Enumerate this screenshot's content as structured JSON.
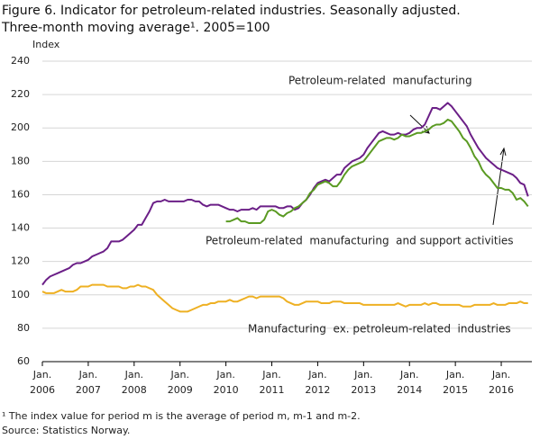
{
  "chart_data": {
    "type": "line",
    "title": [
      "Figure 6.  Indicator for petroleum-related industries. Seasonally adjusted.",
      "Three-month moving average¹. 2005=100"
    ],
    "y_label": "Index",
    "footnote": "¹ The index value for period m is the average of period m, m-1 and m-2.",
    "source": "Source: Statistics Norway.",
    "x": [
      "2006-01",
      "2006-02",
      "2006-03",
      "2006-04",
      "2006-05",
      "2006-06",
      "2006-07",
      "2006-08",
      "2006-09",
      "2006-10",
      "2006-11",
      "2006-12",
      "2007-01",
      "2007-02",
      "2007-03",
      "2007-04",
      "2007-05",
      "2007-06",
      "2007-07",
      "2007-08",
      "2007-09",
      "2007-10",
      "2007-11",
      "2007-12",
      "2008-01",
      "2008-02",
      "2008-03",
      "2008-04",
      "2008-05",
      "2008-06",
      "2008-07",
      "2008-08",
      "2008-09",
      "2008-10",
      "2008-11",
      "2008-12",
      "2009-01",
      "2009-02",
      "2009-03",
      "2009-04",
      "2009-05",
      "2009-06",
      "2009-07",
      "2009-08",
      "2009-09",
      "2009-10",
      "2009-11",
      "2009-12",
      "2010-01",
      "2010-02",
      "2010-03",
      "2010-04",
      "2010-05",
      "2010-06",
      "2010-07",
      "2010-08",
      "2010-09",
      "2010-10",
      "2010-11",
      "2010-12",
      "2011-01",
      "2011-02",
      "2011-03",
      "2011-04",
      "2011-05",
      "2011-06",
      "2011-07",
      "2011-08",
      "2011-09",
      "2011-10",
      "2011-11",
      "2011-12",
      "2012-01",
      "2012-02",
      "2012-03",
      "2012-04",
      "2012-05",
      "2012-06",
      "2012-07",
      "2012-08",
      "2012-09",
      "2012-10",
      "2012-11",
      "2012-12",
      "2013-01",
      "2013-02",
      "2013-03",
      "2013-04",
      "2013-05",
      "2013-06",
      "2013-07",
      "2013-08",
      "2013-09",
      "2013-10",
      "2013-11",
      "2013-12",
      "2014-01",
      "2014-02",
      "2014-03",
      "2014-04",
      "2014-05",
      "2014-06",
      "2014-07",
      "2014-08",
      "2014-09",
      "2014-10",
      "2014-11",
      "2014-12",
      "2015-01",
      "2015-02",
      "2015-03",
      "2015-04",
      "2015-05",
      "2015-06",
      "2015-07",
      "2015-08",
      "2015-09",
      "2015-10",
      "2015-11",
      "2015-12",
      "2016-01",
      "2016-02",
      "2016-03",
      "2016-04",
      "2016-05",
      "2016-06",
      "2016-07",
      "2016-08"
    ],
    "series": [
      {
        "name": "Petroleum-related  manufacturing",
        "color": "#6b1f87",
        "values": [
          106,
          109,
          111,
          112,
          113,
          114,
          115,
          116,
          118,
          119,
          119,
          120,
          121,
          123,
          124,
          125,
          126,
          128,
          132,
          132,
          132,
          133,
          135,
          137,
          139,
          142,
          142,
          146,
          150,
          155,
          156,
          156,
          157,
          156,
          156,
          156,
          156,
          156,
          157,
          157,
          156,
          156,
          154,
          153,
          154,
          154,
          154,
          153,
          152,
          151,
          151,
          150,
          151,
          151,
          151,
          152,
          151,
          153,
          153,
          153,
          153,
          153,
          152,
          152,
          153,
          153,
          151,
          152,
          155,
          157,
          160,
          164,
          167,
          168,
          169,
          168,
          170,
          172,
          172,
          176,
          178,
          180,
          181,
          182,
          184,
          188,
          191,
          194,
          197,
          198,
          197,
          196,
          196,
          197,
          196,
          196,
          197,
          199,
          200,
          200,
          202,
          207,
          212,
          212,
          211,
          213,
          215,
          213,
          210,
          207,
          204,
          201,
          196,
          192,
          188,
          185,
          182,
          180,
          178,
          176,
          175,
          174,
          173,
          172,
          170,
          167,
          166,
          159
        ]
      },
      {
        "name": "Petroleum-related  manufacturing  and support activities",
        "color": "#5a9a22",
        "values": [
          null,
          null,
          null,
          null,
          null,
          null,
          null,
          null,
          null,
          null,
          null,
          null,
          null,
          null,
          null,
          null,
          null,
          null,
          null,
          null,
          null,
          null,
          null,
          null,
          null,
          null,
          null,
          null,
          null,
          null,
          null,
          null,
          null,
          null,
          null,
          null,
          null,
          null,
          null,
          null,
          null,
          null,
          null,
          null,
          null,
          null,
          null,
          null,
          144,
          144,
          145,
          146,
          144,
          144,
          143,
          143,
          143,
          143,
          145,
          150,
          151,
          150,
          148,
          147,
          149,
          150,
          152,
          153,
          155,
          157,
          161,
          163,
          166,
          167,
          168,
          167,
          165,
          165,
          168,
          172,
          175,
          177,
          178,
          179,
          180,
          183,
          186,
          189,
          192,
          193,
          194,
          194,
          193,
          194,
          196,
          195,
          195,
          196,
          197,
          197,
          198,
          199,
          201,
          202,
          202,
          203,
          205,
          204,
          201,
          198,
          194,
          192,
          188,
          183,
          180,
          175,
          172,
          170,
          167,
          164,
          164,
          163,
          163,
          161,
          157,
          158,
          156,
          153
        ]
      },
      {
        "name": "Manufacturing  ex. petroleum-related  industries",
        "color": "#eeb023",
        "values": [
          102,
          101,
          101,
          101,
          102,
          103,
          102,
          102,
          102,
          103,
          105,
          105,
          105,
          106,
          106,
          106,
          106,
          105,
          105,
          105,
          105,
          104,
          104,
          105,
          105,
          106,
          105,
          105,
          104,
          103,
          100,
          98,
          96,
          94,
          92,
          91,
          90,
          90,
          90,
          91,
          92,
          93,
          94,
          94,
          95,
          95,
          96,
          96,
          96,
          97,
          96,
          96,
          97,
          98,
          99,
          99,
          98,
          99,
          99,
          99,
          99,
          99,
          99,
          98,
          96,
          95,
          94,
          94,
          95,
          96,
          96,
          96,
          96,
          95,
          95,
          95,
          96,
          96,
          96,
          95,
          95,
          95,
          95,
          95,
          94,
          94,
          94,
          94,
          94,
          94,
          94,
          94,
          94,
          95,
          94,
          93,
          94,
          94,
          94,
          94,
          95,
          94,
          95,
          95,
          94,
          94,
          94,
          94,
          94,
          94,
          93,
          93,
          93,
          94,
          94,
          94,
          94,
          94,
          95,
          94,
          94,
          94,
          95,
          95,
          95,
          96,
          95,
          95
        ]
      }
    ],
    "ylim": [
      60,
      240
    ],
    "yticks": [
      60,
      80,
      100,
      120,
      140,
      160,
      180,
      200,
      220,
      240
    ],
    "grid": true,
    "xticks": [
      {
        "value": "2006-01",
        "label": [
          "Jan.",
          "2006"
        ]
      },
      {
        "value": "2007-01",
        "label": [
          "Jan.",
          "2007"
        ]
      },
      {
        "value": "2008-01",
        "label": [
          "Jan.",
          "2008"
        ]
      },
      {
        "value": "2009-01",
        "label": [
          "Jan.",
          "2009"
        ]
      },
      {
        "value": "2010-01",
        "label": [
          "Jan.",
          "2010"
        ]
      },
      {
        "value": "2011-01",
        "label": [
          "Jan.",
          "2011"
        ]
      },
      {
        "value": "2012-01",
        "label": [
          "Jan.",
          "2012"
        ]
      },
      {
        "value": "2013-01",
        "label": [
          "Jan.",
          "2013"
        ]
      },
      {
        "value": "2014-01",
        "label": [
          "Jan.",
          "2014"
        ]
      },
      {
        "value": "2015-01",
        "label": [
          "Jan.",
          "2015"
        ]
      },
      {
        "value": "2016-01",
        "label": [
          "Jan.",
          "2016"
        ]
      }
    ]
  }
}
